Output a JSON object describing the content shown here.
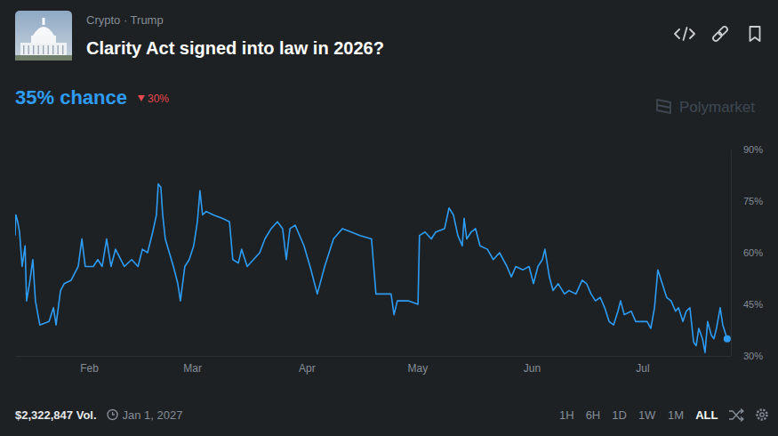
{
  "page": {
    "breadcrumb": "Crypto · Trump",
    "probability": "35% chance",
    "change": "30%",
    "change_direction": "down",
    "watermark": "Polymarket",
    "volume": "$2,322,847 Vol.",
    "end_date": "Jan 1, 2027",
    "ranges": [
      "1H",
      "6H",
      "1D",
      "1W",
      "1M",
      "ALL"
    ],
    "selected_range": "ALL"
  },
  "chart_data": {
    "type": "line",
    "title": "Clarity Act signed into law in 2026?",
    "color": "#2e9cf4",
    "marker": "circle",
    "grid": false,
    "x": [
      12.0,
      12.2,
      12.7,
      13.2,
      13.9,
      14.7,
      15.1,
      15.9,
      16.8,
      17.5,
      18.7,
      21.2,
      22.4,
      23.1,
      24.3,
      25.3,
      27.2,
      29.1,
      30.1,
      31.0,
      33.2,
      34.4,
      35.6,
      36.8,
      38.0,
      39.2,
      41.6,
      43.6,
      45.3,
      46.5,
      47.9,
      49.3,
      50.3,
      50.8,
      51.5,
      52.0,
      52.7,
      54.9,
      56.1,
      56.8,
      58.0,
      59.2,
      60.4,
      61.4,
      62.1,
      62.8,
      63.8,
      65.7,
      68.1,
      70.1,
      71.0,
      72.5,
      73.4,
      74.9,
      76.6,
      78.3,
      79.7,
      81.4,
      83.1,
      84.5,
      85.5,
      86.5,
      87.9,
      90.3,
      92.2,
      93.9,
      95.9,
      98.3,
      100.7,
      103.1,
      105.5,
      108.6,
      109.8,
      113.9,
      114.7,
      115.6,
      118.7,
      121.2,
      121.6,
      123.1,
      124.8,
      126.0,
      128.4,
      129.6,
      130.8,
      132.0,
      133.2,
      133.7,
      134.4,
      135.6,
      136.8,
      138.0,
      140.0,
      141.6,
      143.3,
      145.3,
      146.5,
      147.7,
      149.6,
      151.3,
      152.5,
      153.7,
      154.9,
      155.6,
      156.8,
      157.8,
      159.2,
      160.9,
      162.1,
      164.0,
      165.7,
      166.9,
      168.1,
      169.3,
      170.6,
      171.8,
      173.0,
      174.2,
      175.4,
      176.1,
      177.1,
      179.0,
      180.2,
      181.4,
      183.3,
      184.3,
      185.3,
      186.2,
      187.4,
      188.6,
      189.8,
      191.0,
      191.8,
      193.0,
      193.9,
      194.9,
      195.9,
      196.6,
      197.3,
      198.3,
      199.0,
      199.7,
      200.7,
      201.4,
      202.1,
      203.1,
      203.8,
      205.0
    ],
    "values": [
      65,
      71,
      69,
      66,
      56,
      62,
      46,
      51,
      58,
      46,
      39,
      40,
      44,
      39,
      49,
      51,
      52,
      56,
      64,
      56,
      56,
      58,
      56,
      64,
      56,
      61,
      56,
      58,
      56,
      61,
      60,
      66,
      71,
      80,
      79,
      71,
      64,
      56,
      51,
      46,
      56,
      58,
      62,
      69,
      78,
      71,
      72,
      71,
      70,
      69,
      58,
      57,
      61,
      56,
      58,
      60,
      64,
      67,
      69,
      67,
      58,
      67,
      68,
      62,
      55,
      48,
      56,
      64,
      67,
      66,
      65,
      64,
      48,
      48,
      42,
      46,
      46,
      45,
      65,
      66,
      64,
      66,
      67,
      73,
      71,
      65,
      62,
      70,
      64,
      66,
      67,
      62,
      61,
      58,
      60,
      56,
      53,
      56,
      55,
      56,
      51,
      56,
      58,
      61,
      53,
      49,
      51,
      48,
      49,
      48,
      52,
      51,
      48,
      46,
      47,
      44,
      40,
      39,
      43,
      46,
      42,
      43,
      40,
      40,
      40,
      38,
      44,
      55,
      51,
      47,
      46,
      43,
      44,
      40,
      43,
      44,
      34,
      33,
      38,
      35,
      31,
      40,
      36,
      35,
      38,
      44,
      39,
      35
    ],
    "xlim": [
      12,
      206
    ],
    "xticks": [
      {
        "value": 32,
        "label": "Feb"
      },
      {
        "value": 60,
        "label": "Mar"
      },
      {
        "value": 91,
        "label": "Apr"
      },
      {
        "value": 121,
        "label": "May"
      },
      {
        "value": 152,
        "label": "Jun"
      },
      {
        "value": 182,
        "label": "Jul"
      }
    ],
    "ylim": [
      30,
      90
    ],
    "yticks": [
      {
        "value": 30,
        "label": "30%"
      },
      {
        "value": 45,
        "label": "45%"
      },
      {
        "value": 60,
        "label": "60%"
      },
      {
        "value": 75,
        "label": "75%"
      },
      {
        "value": 90,
        "label": "90%"
      }
    ]
  }
}
